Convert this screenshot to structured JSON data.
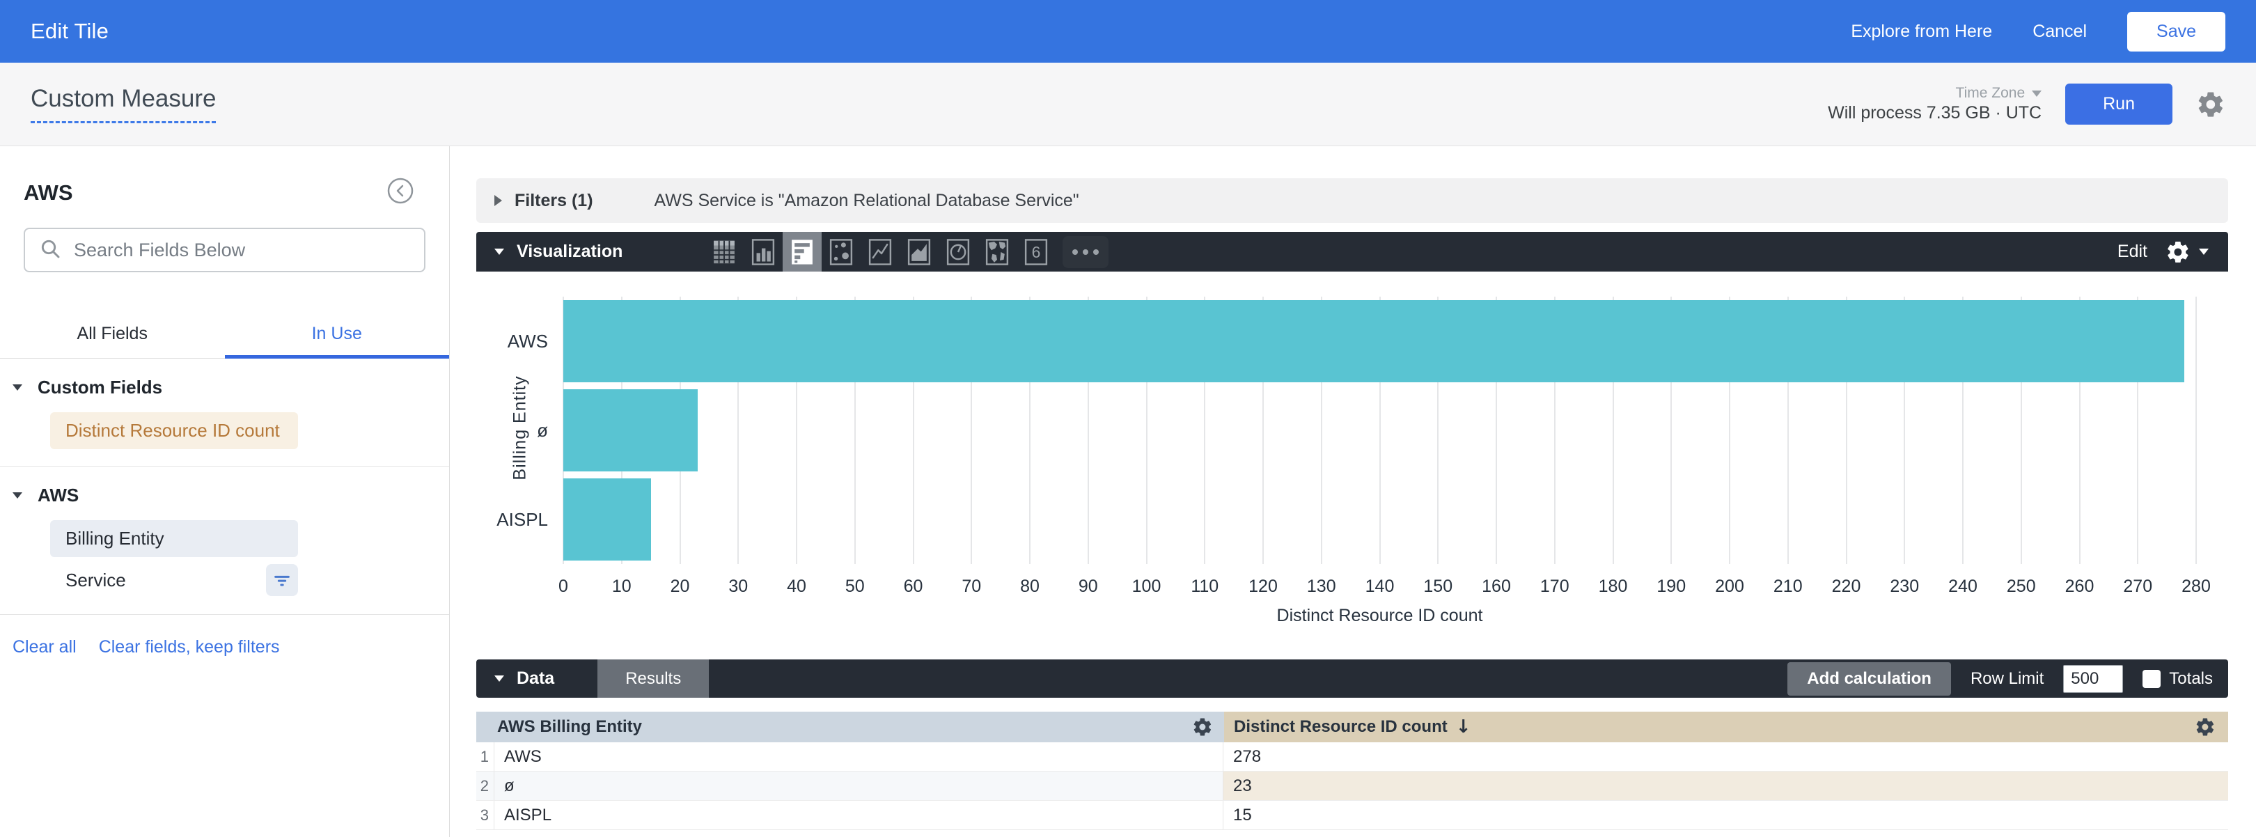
{
  "top_bar": {
    "title": "Edit Tile",
    "explore_label": "Explore from Here",
    "cancel_label": "Cancel",
    "save_label": "Save"
  },
  "query_bar": {
    "title": "Custom Measure",
    "timezone_label": "Time Zone",
    "process_text": "Will process 7.35 GB · UTC",
    "run_label": "Run"
  },
  "sidebar": {
    "model_name": "AWS",
    "search_placeholder": "Search Fields Below",
    "tabs": [
      {
        "label": "All Fields",
        "active": false
      },
      {
        "label": "In Use",
        "active": true
      }
    ],
    "sections": [
      {
        "title": "Custom Fields",
        "items": [
          {
            "label": "Distinct Resource ID count"
          }
        ]
      },
      {
        "title": "AWS",
        "items": [
          {
            "label": "Billing Entity"
          },
          {
            "label": "Service"
          }
        ]
      }
    ],
    "links": {
      "clear_all": "Clear all",
      "clear_fields": "Clear fields, keep filters"
    }
  },
  "filters": {
    "label": "Filters (1)",
    "summary": "AWS Service is \"Amazon Relational Database Service\""
  },
  "visualization": {
    "label": "Visualization",
    "edit_label": "Edit",
    "icons": [
      "table",
      "column-chart",
      "bar-chart",
      "scatter-chart",
      "line-chart",
      "area-chart",
      "pie-chart",
      "map-chart",
      "single-value",
      "more-options"
    ],
    "active_icon": "bar-chart",
    "accent_color": "#3574e0"
  },
  "chart_data": {
    "type": "bar",
    "orientation": "horizontal",
    "categories": [
      "AWS",
      "ø",
      "AISPL"
    ],
    "values": [
      278,
      23,
      15
    ],
    "series_name": "Distinct Resource ID count",
    "xlabel": "Distinct Resource ID count",
    "ylabel": "Billing Entity",
    "xlim": [
      0,
      280
    ],
    "x_tick_step": 10,
    "bar_color": "#59c4d2",
    "grid": true,
    "legend": "none"
  },
  "data_panel": {
    "label": "Data",
    "results_tab": "Results",
    "add_calculation_label": "Add calculation",
    "row_limit_label": "Row Limit",
    "row_limit_value": "500",
    "totals_label": "Totals"
  },
  "table": {
    "columns": [
      {
        "label": "AWS Billing Entity"
      },
      {
        "label": "Distinct Resource ID count",
        "sort": "↓"
      }
    ],
    "rows": [
      {
        "n": "1",
        "entity": "AWS",
        "count": "278"
      },
      {
        "n": "2",
        "entity": "ø",
        "count": "23"
      },
      {
        "n": "3",
        "entity": "AISPL",
        "count": "15"
      }
    ]
  }
}
